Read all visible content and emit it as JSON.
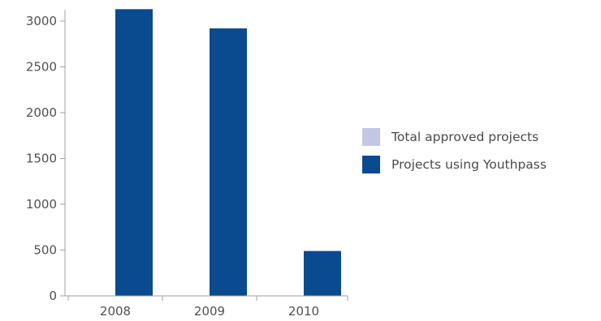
{
  "chart_data": {
    "type": "bar",
    "categories": [
      "2008",
      "2009",
      "2010"
    ],
    "series": [
      {
        "name": "Total approved projects",
        "color": "#c3c7e3",
        "values": [
          0,
          0,
          0
        ]
      },
      {
        "name": "Projects using Youthpass",
        "color": "#0a4a8f",
        "values": [
          3130,
          2920,
          490
        ]
      }
    ],
    "yticks": [
      "0",
      "500",
      "1000",
      "1500",
      "2000",
      "2500",
      "3000"
    ],
    "ylim": [
      0,
      3100
    ],
    "title": "",
    "xlabel": "",
    "ylabel": "",
    "legend_position": "right",
    "grid": false
  }
}
